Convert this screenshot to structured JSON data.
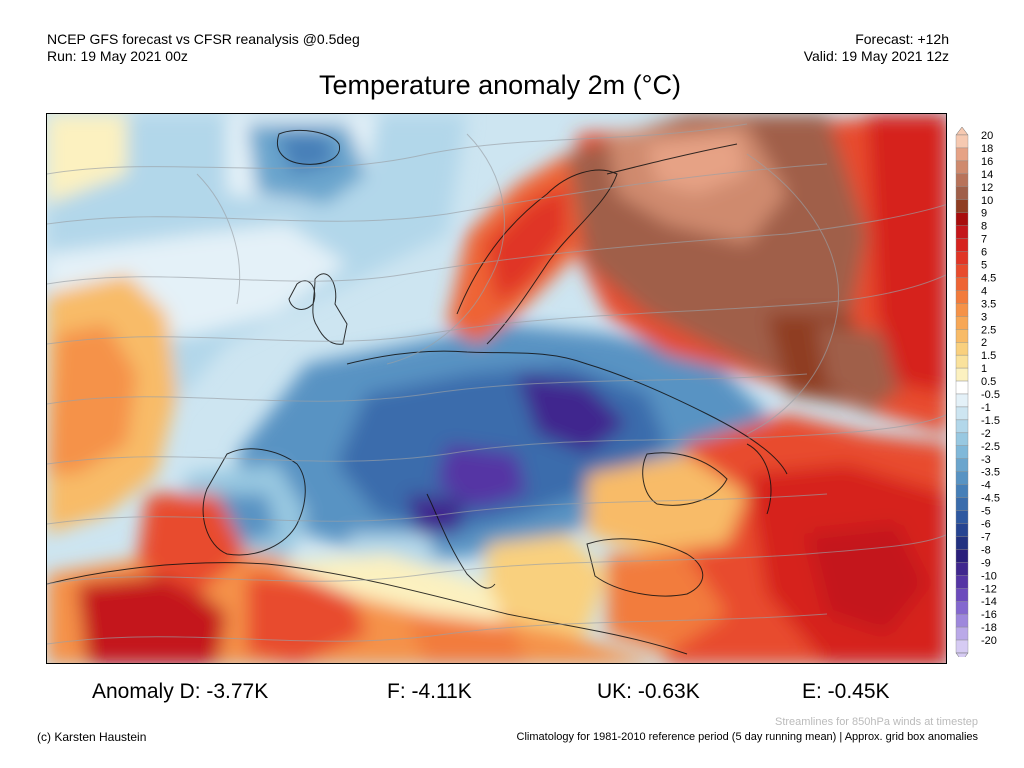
{
  "header": {
    "line1_left": "NCEP GFS forecast vs CFSR reanalysis @0.5deg",
    "line2_left": "Run: 19 May 2021 00z",
    "line1_right": "Forecast: +12h",
    "line2_right": "Valid: 19 May 2021 12z"
  },
  "title": "Temperature anomaly 2m (°C)",
  "colorbar": {
    "labels": [
      "20",
      "18",
      "16",
      "14",
      "12",
      "10",
      "9",
      "8",
      "7",
      "6",
      "5",
      "4.5",
      "4",
      "3.5",
      "3",
      "2.5",
      "2",
      "1.5",
      "1",
      "0.5",
      "-0.5",
      "-1",
      "-1.5",
      "-2",
      "-2.5",
      "-3",
      "-3.5",
      "-4",
      "-4.5",
      "-5",
      "-6",
      "-7",
      "-8",
      "-9",
      "-10",
      "-12",
      "-14",
      "-16",
      "-18",
      "-20"
    ],
    "colors": [
      "#f6c9b1",
      "#e6a285",
      "#cf8a6e",
      "#b8735a",
      "#a05f49",
      "#8f3d22",
      "#a80d0d",
      "#c4161b",
      "#d6231f",
      "#e03526",
      "#e84b2d",
      "#ee6434",
      "#f27b3c",
      "#f59248",
      "#f7a756",
      "#f8bb67",
      "#f9d07e",
      "#fae29c",
      "#fcf1c0",
      "#ffffff",
      "#e4f1f8",
      "#cde5f1",
      "#b2d7ea",
      "#98c8e1",
      "#80b8d9",
      "#6ba5cd",
      "#5893c3",
      "#467fb8",
      "#3a6cac",
      "#2e58a0",
      "#264491",
      "#223180",
      "#2a1f7a",
      "#40278e",
      "#5535a4",
      "#6c4bbc",
      "#8468cf",
      "#9e88dc",
      "#baa9e8",
      "#d6cbf3"
    ]
  },
  "anomalies": {
    "d": "Anomaly D: -3.77K",
    "f": "F: -4.11K",
    "uk": "UK: -0.63K",
    "e": "E: -0.45K"
  },
  "credit": "(c) Karsten Haustein",
  "footnotes": {
    "streamlines": "Streamlines for 850hPa winds at timestep",
    "climatology": "Climatology for 1981-2010 reference period (5 day running mean) | Approx. grid box anomalies"
  }
}
